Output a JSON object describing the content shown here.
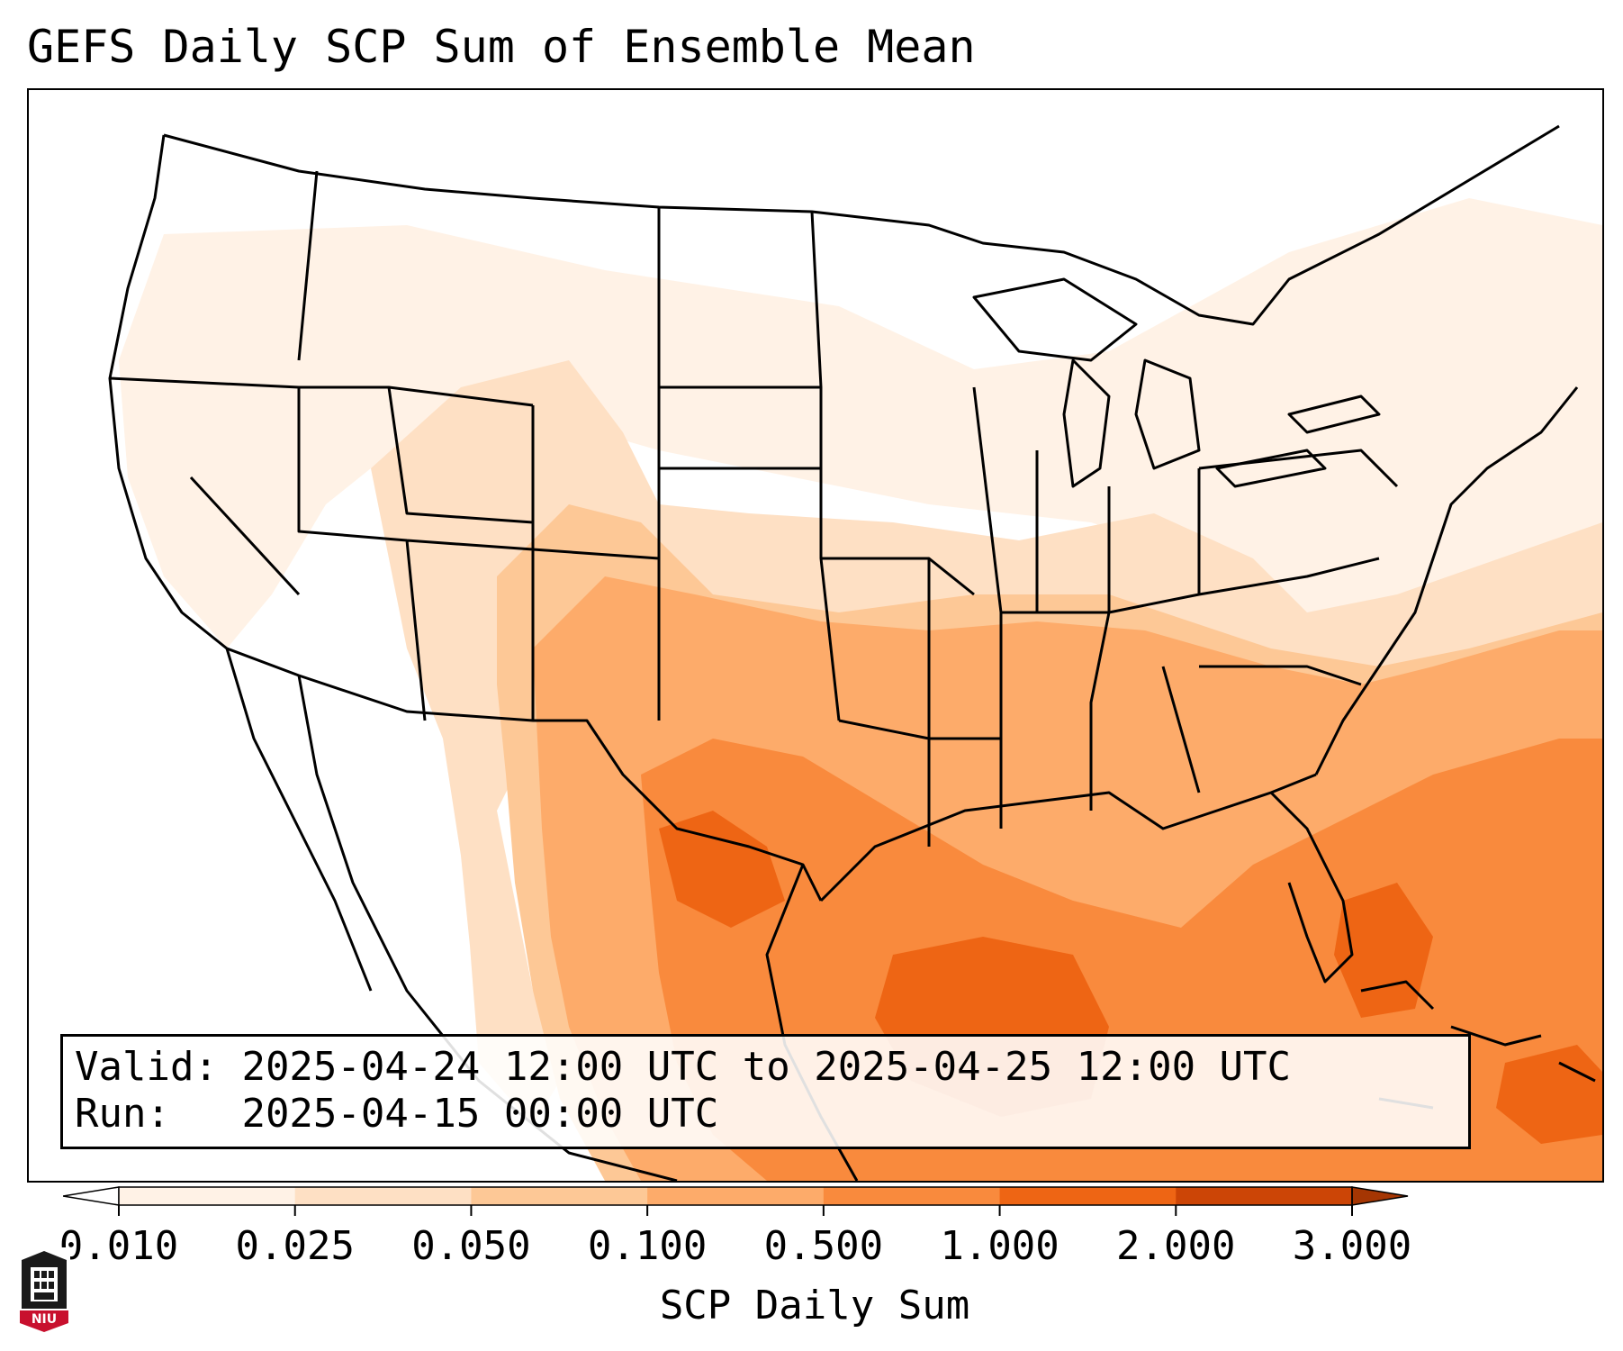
{
  "title": "GEFS Daily SCP Sum of Ensemble Mean",
  "info": {
    "valid_label": "Valid:",
    "valid_value": "2025-04-24 12:00 UTC to 2025-04-25 12:00 UTC",
    "run_label": "Run:",
    "run_value": "2025-04-15 00:00 UTC"
  },
  "colorbar": {
    "label": "SCP Daily Sum",
    "ticks": [
      "0.010",
      "0.025",
      "0.050",
      "0.100",
      "0.500",
      "1.000",
      "2.000",
      "3.000"
    ],
    "colors": [
      "#fff2e6",
      "#fee0c4",
      "#fdc896",
      "#fdab6a",
      "#f98a3d",
      "#ee6514",
      "#cc4506"
    ],
    "under_color": "#ffffff",
    "over_color": "#a53603"
  },
  "logo": {
    "text": "NIU",
    "color": "#c8102e"
  }
}
